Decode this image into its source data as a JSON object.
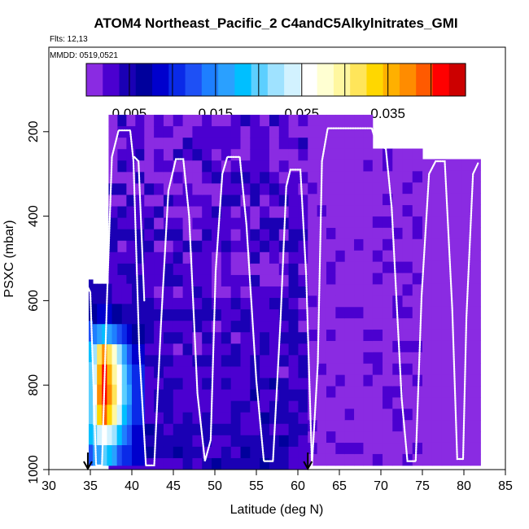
{
  "chart_data": {
    "type": "heatmap",
    "title": "ATOM4 Northeast_Pacific_2 C4andC5Alkylnitrates_GMI",
    "flights_text": "Flts: 12,13",
    "dates_text": "MMDD: 0519,0521",
    "xlabel": "Latitude (deg N)",
    "ylabel": "PSXC (mbar)",
    "xlim": [
      30,
      85
    ],
    "ylim": [
      1000,
      0
    ],
    "x_ticks": [
      30,
      35,
      40,
      45,
      50,
      55,
      60,
      65,
      70,
      75,
      80,
      85
    ],
    "y_ticks": [
      200,
      400,
      600,
      800,
      1000
    ],
    "colorbar": {
      "min": 0.0,
      "max": 0.044,
      "step": 0.002,
      "tick_values": [
        0.005,
        0.015,
        0.025,
        0.035
      ],
      "tick_labels": [
        "0.005",
        "0.015",
        "0.025",
        "0.035"
      ],
      "colors": [
        "#8a2be2",
        "#4b00d0",
        "#1a00b4",
        "#00009c",
        "#0000cd",
        "#0a2ae8",
        "#1e50f5",
        "#1e7fff",
        "#2aa0ff",
        "#00bfff",
        "#5ccfff",
        "#9fe2ff",
        "#d2f2ff",
        "#ffffff",
        "#ffffd2",
        "#fff7a0",
        "#ffe55a",
        "#ffd700",
        "#ffb000",
        "#ff8c00",
        "#ff5a00",
        "#ff0000",
        "#cc0000"
      ]
    },
    "markers": [
      {
        "latitude": 34.7
      },
      {
        "latitude": 61.2
      }
    ],
    "heatmap_columns": [
      {
        "x0": 34.8,
        "x1": 35.3,
        "p0": 550,
        "p1": 990,
        "v": [
          0.004,
          0.006,
          0.012,
          0.018,
          0.02,
          0.021,
          0.02,
          0.018,
          0.012
        ]
      },
      {
        "x0": 35.3,
        "x1": 35.8,
        "p0": 560,
        "p1": 990,
        "v": [
          0.004,
          0.007,
          0.014,
          0.022,
          0.024,
          0.026,
          0.024,
          0.021,
          0.016
        ]
      },
      {
        "x0": 35.8,
        "x1": 36.4,
        "p0": 560,
        "p1": 990,
        "v": [
          0.005,
          0.008,
          0.016,
          0.032,
          0.035,
          0.038,
          0.033,
          0.024,
          0.017
        ]
      },
      {
        "x0": 36.4,
        "x1": 37.0,
        "p0": 560,
        "p1": 990,
        "v": [
          0.005,
          0.009,
          0.018,
          0.038,
          0.041,
          0.042,
          0.039,
          0.026,
          0.02
        ]
      },
      {
        "x0": 37.0,
        "x1": 37.6,
        "p0": 560,
        "p1": 990,
        "v": [
          0.004,
          0.008,
          0.016,
          0.032,
          0.036,
          0.038,
          0.034,
          0.024,
          0.018
        ]
      },
      {
        "x0": 37.6,
        "x1": 38.2,
        "p0": 560,
        "p1": 990,
        "v": [
          0.003,
          0.007,
          0.014,
          0.028,
          0.03,
          0.032,
          0.03,
          0.022,
          0.016
        ]
      },
      {
        "x0": 38.2,
        "x1": 38.8,
        "p0": 560,
        "p1": 990,
        "v": [
          0.003,
          0.006,
          0.012,
          0.022,
          0.025,
          0.026,
          0.024,
          0.019,
          0.013
        ]
      },
      {
        "x0": 38.8,
        "x1": 39.4,
        "p0": 560,
        "p1": 990,
        "v": [
          0.003,
          0.005,
          0.01,
          0.017,
          0.02,
          0.021,
          0.019,
          0.015,
          0.011
        ]
      },
      {
        "x0": 39.4,
        "x1": 40.0,
        "p0": 560,
        "p1": 990,
        "v": [
          0.003,
          0.005,
          0.009,
          0.013,
          0.015,
          0.016,
          0.015,
          0.012,
          0.01
        ]
      },
      {
        "x0": 40.0,
        "x1": 41.5,
        "p0": 560,
        "p1": 990,
        "v": [
          0.004,
          0.005,
          0.007,
          0.009,
          0.01,
          0.01,
          0.01,
          0.009,
          0.008
        ]
      }
    ],
    "flight_tracks": [
      {
        "name": "",
        "points": [
          [
            34.5,
            560
          ],
          [
            35.0,
            580
          ],
          [
            35.7,
            990
          ],
          [
            36.4,
            990
          ],
          [
            37.0,
            600
          ],
          [
            37.6,
            260
          ],
          [
            38.4,
            197
          ],
          [
            39.8,
            197
          ],
          [
            40.2,
            270
          ],
          [
            40.9,
            720
          ],
          [
            41.7,
            990
          ],
          [
            42.7,
            990
          ],
          [
            43.5,
            660
          ],
          [
            44.4,
            340
          ],
          [
            45.3,
            265
          ],
          [
            46.2,
            265
          ],
          [
            46.9,
            400
          ],
          [
            47.9,
            820
          ],
          [
            48.8,
            980
          ],
          [
            49.5,
            930
          ],
          [
            50.1,
            530
          ],
          [
            50.9,
            300
          ],
          [
            51.5,
            260
          ],
          [
            53.0,
            260
          ],
          [
            53.8,
            420
          ],
          [
            55.0,
            790
          ],
          [
            55.9,
            980
          ],
          [
            57.0,
            980
          ],
          [
            57.9,
            650
          ],
          [
            58.6,
            330
          ],
          [
            59.1,
            290
          ],
          [
            60.3,
            290
          ],
          [
            61.0,
            540
          ],
          [
            61.7,
            990
          ],
          [
            62.4,
            750
          ],
          [
            62.9,
            270
          ],
          [
            63.6,
            192
          ],
          [
            68.9,
            192
          ],
          [
            69.5,
            230
          ],
          [
            70.6,
            240
          ],
          [
            71.3,
            380
          ],
          [
            72.5,
            830
          ],
          [
            73.2,
            980
          ],
          [
            74.2,
            980
          ],
          [
            74.9,
            590
          ],
          [
            75.8,
            300
          ],
          [
            76.6,
            270
          ],
          [
            77.7,
            270
          ],
          [
            78.6,
            620
          ],
          [
            79.2,
            975
          ],
          [
            79.9,
            975
          ],
          [
            80.3,
            640
          ],
          [
            81.1,
            300
          ],
          [
            81.7,
            275
          ]
        ]
      },
      {
        "name": "",
        "points": [
          [
            40.3,
            260
          ],
          [
            40.8,
            270
          ],
          [
            41.5,
            600
          ]
        ]
      }
    ]
  }
}
